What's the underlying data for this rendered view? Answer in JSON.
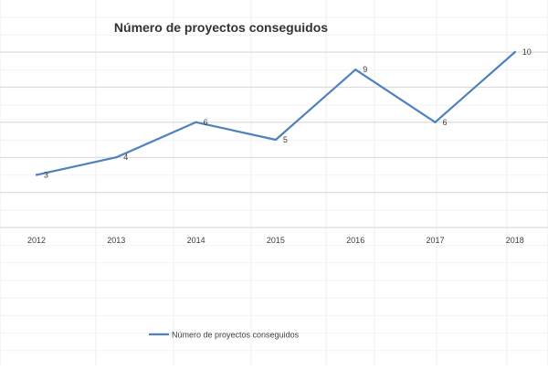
{
  "chart_data": {
    "type": "line",
    "title": "Número de proyectos conseguidos",
    "categories": [
      "2012",
      "2013",
      "2014",
      "2015",
      "2016",
      "2017",
      "2018"
    ],
    "series": [
      {
        "name": "Número de proyectos conseguidos",
        "values": [
          3,
          4,
          6,
          5,
          9,
          6,
          10
        ]
      }
    ],
    "ylim": [
      0,
      11
    ],
    "y_gridlines": [
      2,
      4,
      6,
      8,
      10
    ],
    "grid": true,
    "show_y_tick_labels": false,
    "data_labels": true,
    "legend_position": "bottom",
    "colors": {
      "series": "#4f81bd",
      "grid": "#d9d9d9",
      "text": "#404040",
      "title": "#333333"
    }
  }
}
